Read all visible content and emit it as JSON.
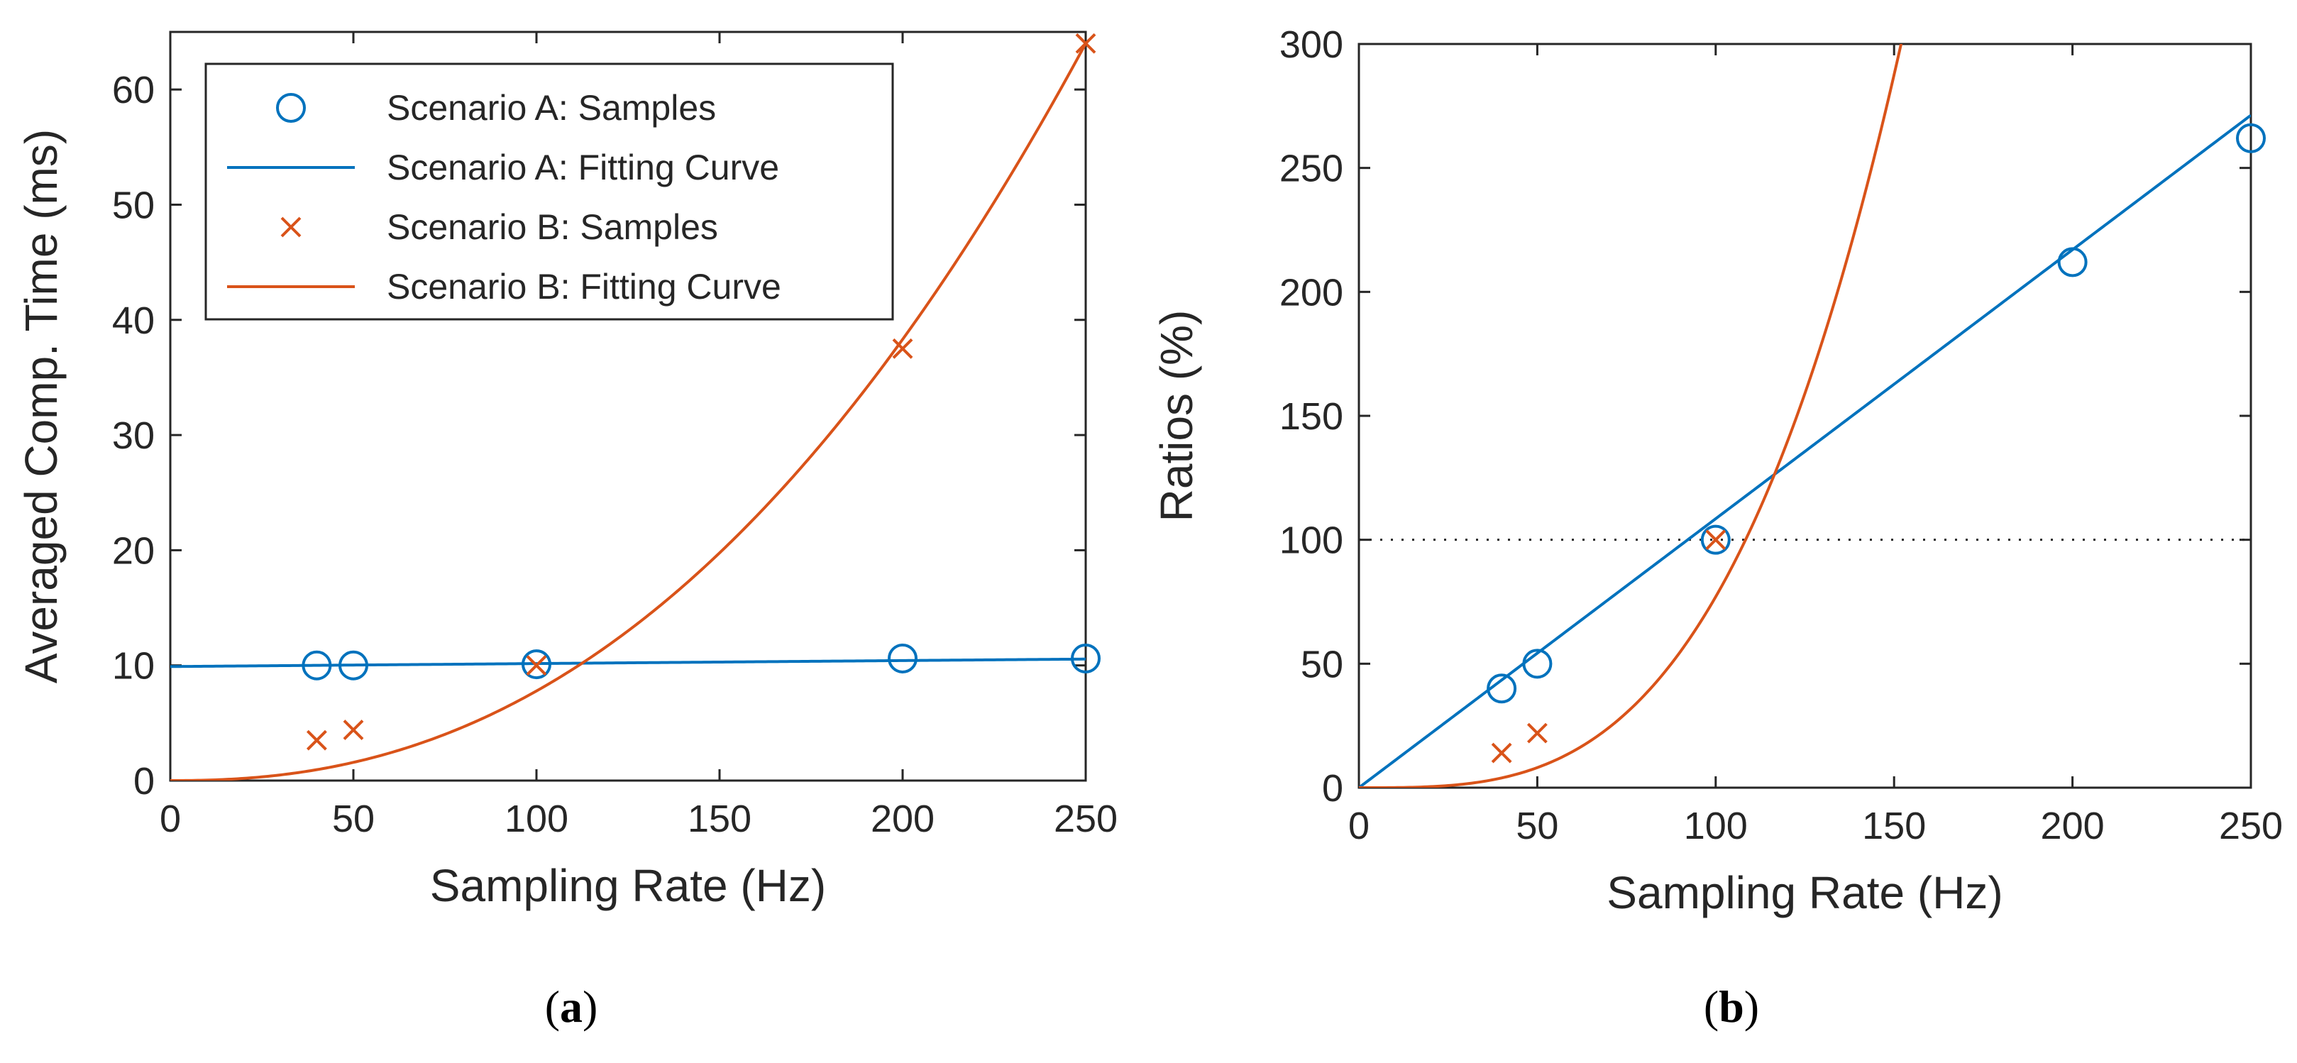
{
  "chart_data": [
    {
      "type": "line",
      "panel": "a",
      "xlabel": "Sampling Rate (Hz)",
      "ylabel": "Averaged Comp. Time (ms)",
      "xlim": [
        0,
        250
      ],
      "ylim": [
        0,
        65
      ],
      "xticks": [
        "0",
        "50",
        "100",
        "150",
        "200",
        "250"
      ],
      "yticks": [
        "0",
        "10",
        "20",
        "30",
        "40",
        "50",
        "60"
      ],
      "legend_position": "top-left",
      "series": [
        {
          "name": "Scenario A: Samples",
          "kind": "scatter",
          "marker": "circle",
          "color": "#0072BD",
          "x": [
            40,
            50,
            100,
            200,
            250
          ],
          "y": [
            10.0,
            10.0,
            10.1,
            10.6,
            10.6
          ]
        },
        {
          "name": "Scenario A: Fitting Curve",
          "kind": "line",
          "color": "#0072BD",
          "fit": "linear",
          "params": {
            "intercept": 9.9,
            "slope": 0.0026
          }
        },
        {
          "name": "Scenario B: Samples",
          "kind": "scatter",
          "marker": "x",
          "color": "#D95319",
          "x": [
            40,
            50,
            100,
            200,
            250
          ],
          "y": [
            3.5,
            4.4,
            10.0,
            37.5,
            64.0
          ]
        },
        {
          "name": "Scenario B: Fitting Curve",
          "kind": "line",
          "color": "#D95319",
          "fit": "power",
          "params": {
            "coef": 64.0,
            "ref_x": 250,
            "exponent": 2.3
          }
        }
      ],
      "caption": "a"
    },
    {
      "type": "line",
      "panel": "b",
      "xlabel": "Sampling Rate (Hz)",
      "ylabel": "Ratios (%)",
      "xlim": [
        0,
        250
      ],
      "ylim": [
        0,
        300
      ],
      "xticks": [
        "0",
        "50",
        "100",
        "150",
        "200",
        "250"
      ],
      "yticks": [
        "0",
        "50",
        "100",
        "150",
        "200",
        "250",
        "300"
      ],
      "reference_line": {
        "y": 100,
        "style": "dotted"
      },
      "series": [
        {
          "name": "Scenario A: Samples",
          "kind": "scatter",
          "marker": "circle",
          "color": "#0072BD",
          "x": [
            40,
            50,
            100,
            200,
            250
          ],
          "y": [
            40,
            50,
            100,
            212,
            262
          ]
        },
        {
          "name": "Scenario A: Fitting Curve",
          "kind": "line",
          "color": "#0072BD",
          "fit": "linear",
          "params": {
            "intercept": 0,
            "slope": 1.085
          }
        },
        {
          "name": "Scenario B: Samples",
          "kind": "scatter",
          "marker": "x",
          "color": "#D95319",
          "x": [
            40,
            50,
            100
          ],
          "y": [
            14,
            22,
            100
          ]
        },
        {
          "name": "Scenario B: Fitting Curve",
          "kind": "line",
          "color": "#D95319",
          "fit": "power",
          "params": {
            "coef": 77,
            "ref_x": 100,
            "exponent": 3.25
          }
        }
      ],
      "caption": "b"
    }
  ]
}
